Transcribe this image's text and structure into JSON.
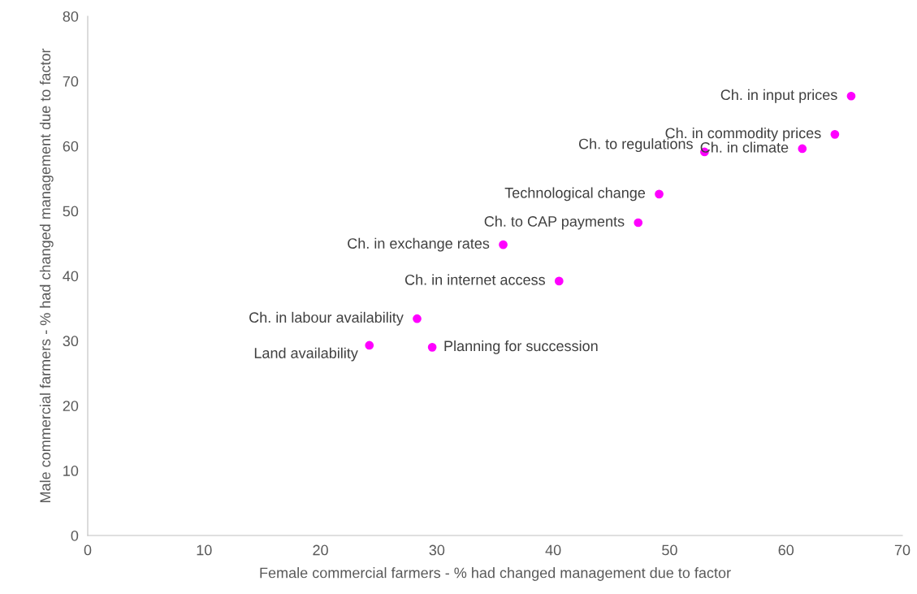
{
  "chart_data": {
    "type": "scatter",
    "xlabel": "Female commercial farmers - % had changed management due to factor",
    "ylabel": "Male commercial farmers - % had changed management due to factor",
    "x": [
      65.6,
      64.2,
      61.4,
      53.0,
      49.1,
      47.3,
      35.7,
      40.5,
      28.3,
      24.2,
      29.6
    ],
    "series": [
      {
        "color": "#ff00ff",
        "values": [
          67.7,
          61.8,
          59.6,
          59.1,
          52.6,
          48.2,
          44.8,
          39.2,
          33.4,
          29.3,
          29.0
        ]
      }
    ],
    "annotations": [
      {
        "text": "Ch. in input prices",
        "x": 65.6,
        "y": 67.7
      },
      {
        "text": "Ch. in commodity prices",
        "x": 64.2,
        "y": 61.8
      },
      {
        "text": "Ch. in climate",
        "x": 61.4,
        "y": 59.6
      },
      {
        "text": "Ch. to regulations",
        "x": 53.0,
        "y": 59.1
      },
      {
        "text": "Technological change",
        "x": 49.1,
        "y": 52.6
      },
      {
        "text": "Ch. to CAP payments",
        "x": 47.3,
        "y": 48.2
      },
      {
        "text": "Ch. in exchange rates",
        "x": 35.7,
        "y": 44.8
      },
      {
        "text": "Ch. in internet access",
        "x": 40.5,
        "y": 39.2
      },
      {
        "text": "Ch. in labour availability",
        "x": 28.3,
        "y": 33.4
      },
      {
        "text": "Land availability",
        "x": 24.2,
        "y": 29.3
      },
      {
        "text": "Planning for succession",
        "x": 29.6,
        "y": 29.0
      }
    ],
    "xlim": [
      0,
      70
    ],
    "xticks": [
      0,
      10,
      20,
      30,
      40,
      50,
      60,
      70
    ],
    "ylim": [
      0,
      80
    ],
    "yticks": [
      0,
      10,
      20,
      30,
      40,
      50,
      60,
      70,
      80
    ],
    "grid": false,
    "legend": false,
    "marker": "circle"
  }
}
